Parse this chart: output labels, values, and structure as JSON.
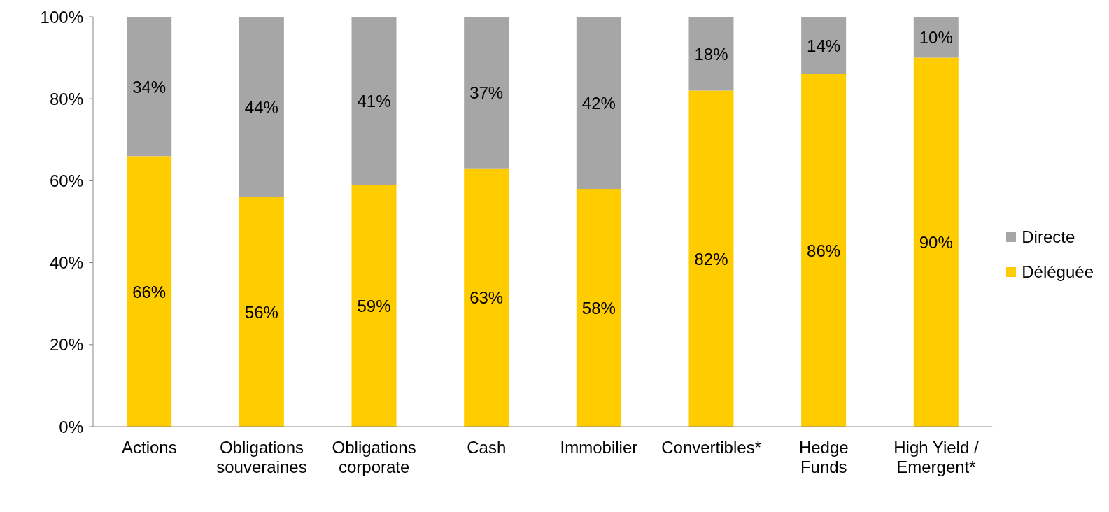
{
  "chart_data": {
    "type": "bar",
    "stacked": true,
    "categories": [
      "Actions",
      "Obligations souveraines",
      "Obligations corporate",
      "Cash",
      "Immobilier",
      "Convertibles*",
      "Hedge Funds",
      "High Yield / Emergent*"
    ],
    "series": [
      {
        "name": "Déléguée",
        "color": "#ffcc00",
        "values": [
          66,
          56,
          59,
          63,
          58,
          82,
          86,
          90
        ],
        "value_labels": [
          "66%",
          "56%",
          "59%",
          "63%",
          "58%",
          "82%",
          "86%",
          "90%"
        ]
      },
      {
        "name": "Directe",
        "color": "#a6a6a6",
        "values": [
          34,
          44,
          41,
          37,
          42,
          18,
          14,
          10
        ],
        "value_labels": [
          "34%",
          "44%",
          "41%",
          "37%",
          "42%",
          "18%",
          "14%",
          "10%"
        ]
      }
    ],
    "ylim": [
      0,
      100
    ],
    "yticks": [
      {
        "value": 0,
        "label": "0%"
      },
      {
        "value": 20,
        "label": "20%"
      },
      {
        "value": 40,
        "label": "40%"
      },
      {
        "value": 60,
        "label": "60%"
      },
      {
        "value": 80,
        "label": "80%"
      },
      {
        "value": 100,
        "label": "100%"
      }
    ],
    "grid": false,
    "legend": "right"
  }
}
